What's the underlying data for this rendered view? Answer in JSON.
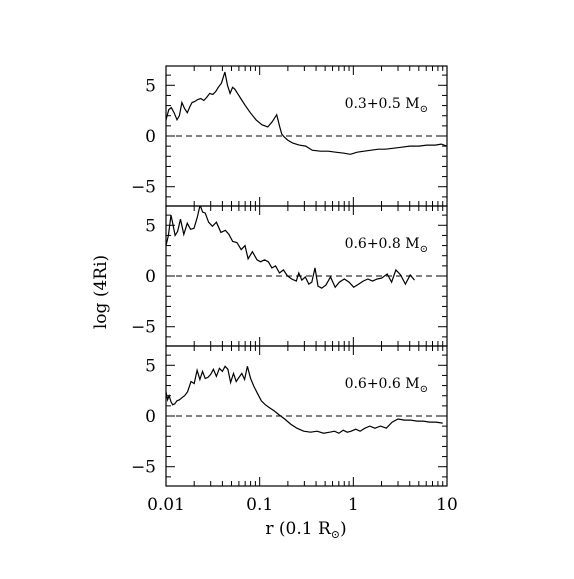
{
  "figure": {
    "xlabel": "r  (0.1 R",
    "xlabel_sub": "⊙",
    "xlabel_close": ")",
    "ylabel": "log  (4Ri)"
  },
  "chart_data": [
    {
      "type": "line",
      "panel": "top",
      "label_text": "0.3+0.5 M",
      "label_sub": "⊙",
      "xscale": "log",
      "xlim": [
        0.01,
        10
      ],
      "ylim": [
        -6.9,
        6.9
      ],
      "x_ticks": [
        "0.01",
        "0.1",
        "1",
        "10"
      ],
      "y_ticks": [
        "5",
        "0",
        "−5"
      ],
      "reference_line": {
        "y": 0,
        "style": "dashed"
      },
      "series": [
        {
          "x": [
            0.01,
            0.0107,
            0.0114,
            0.0122,
            0.0131,
            0.0139,
            0.0148,
            0.0158,
            0.0169,
            0.018,
            0.019,
            0.0203,
            0.0218,
            0.0235,
            0.0253,
            0.0272,
            0.0293,
            0.0317,
            0.034,
            0.0362,
            0.039,
            0.0425,
            0.0453,
            0.0483,
            0.0514,
            0.0544,
            0.059,
            0.0638,
            0.0703,
            0.0794,
            0.0913,
            0.106,
            0.122,
            0.136,
            0.152,
            0.163,
            0.172,
            0.183,
            0.199,
            0.226,
            0.264,
            0.31,
            0.364,
            0.443,
            0.54,
            0.648,
            0.795,
            0.93,
            1.1,
            1.3,
            1.55,
            1.85,
            2.2,
            2.7,
            3.3,
            4.0,
            5.0,
            6.1,
            7.5,
            8.7,
            10.0
          ],
          "y": [
            1.6,
            2.6,
            2.8,
            2.3,
            1.6,
            2.0,
            3.3,
            2.7,
            2.3,
            2.9,
            3.3,
            3.4,
            3.6,
            3.7,
            3.5,
            3.8,
            4.2,
            4.1,
            4.4,
            4.8,
            5.2,
            6.3,
            5.0,
            4.2,
            4.8,
            4.6,
            4.1,
            3.6,
            3.0,
            2.3,
            1.6,
            1.1,
            0.9,
            1.4,
            2.1,
            1.0,
            0.2,
            -0.1,
            -0.4,
            -0.7,
            -0.9,
            -1.0,
            -1.4,
            -1.5,
            -1.5,
            -1.6,
            -1.7,
            -1.8,
            -1.6,
            -1.5,
            -1.4,
            -1.3,
            -1.3,
            -1.2,
            -1.1,
            -1.0,
            -1.0,
            -0.9,
            -0.9,
            -0.8,
            -1.0
          ]
        }
      ]
    },
    {
      "type": "line",
      "panel": "middle",
      "label_text": "0.6+0.8 M",
      "label_sub": "⊙",
      "xscale": "log",
      "xlim": [
        0.01,
        10
      ],
      "ylim": [
        -6.9,
        6.9
      ],
      "x_ticks": [
        "0.01",
        "0.1",
        "1",
        "10"
      ],
      "y_ticks": [
        "5",
        "0",
        "−5"
      ],
      "reference_line": {
        "y": 0,
        "style": "dashed"
      },
      "series": [
        {
          "x": [
            0.01,
            0.0106,
            0.0113,
            0.0118,
            0.0125,
            0.0133,
            0.0143,
            0.0155,
            0.0169,
            0.0183,
            0.0199,
            0.0216,
            0.0231,
            0.0246,
            0.0262,
            0.0285,
            0.0313,
            0.0345,
            0.0386,
            0.0431,
            0.0469,
            0.0515,
            0.0572,
            0.0635,
            0.0698,
            0.0752,
            0.0836,
            0.0936,
            0.102,
            0.113,
            0.124,
            0.135,
            0.148,
            0.163,
            0.179,
            0.198,
            0.22,
            0.246,
            0.262,
            0.282,
            0.307,
            0.335,
            0.36,
            0.39,
            0.42,
            0.46,
            0.51,
            0.57,
            0.64,
            0.71,
            0.8,
            0.9,
            1.01,
            1.14,
            1.27,
            1.43,
            1.6,
            1.8,
            2.02,
            2.3,
            2.56,
            2.85,
            3.2,
            3.6,
            4.05,
            4.5
          ],
          "y": [
            3.0,
            4.0,
            6.0,
            5.2,
            4.0,
            4.4,
            5.6,
            4.1,
            5.2,
            4.6,
            4.7,
            5.8,
            7.0,
            6.3,
            6.2,
            5.3,
            4.9,
            5.3,
            4.3,
            4.5,
            4.1,
            3.4,
            3.3,
            2.6,
            3.0,
            1.7,
            2.4,
            1.6,
            1.4,
            1.6,
            1.4,
            0.8,
            1.0,
            0.3,
            0.6,
            0.0,
            -0.3,
            -0.5,
            0.3,
            -0.4,
            -0.1,
            -0.8,
            -0.6,
            0.8,
            -1.0,
            -1.2,
            -0.9,
            -0.1,
            -1.1,
            -0.6,
            -0.3,
            -0.6,
            -1.1,
            -0.8,
            -0.5,
            -0.3,
            -0.5,
            -0.3,
            -0.2,
            0.2,
            -0.6,
            0.6,
            0.1,
            -0.8,
            0.1,
            -0.4
          ]
        }
      ]
    },
    {
      "type": "line",
      "panel": "bottom",
      "label_text": "0.6+0.6 M",
      "label_sub": "⊙",
      "xscale": "log",
      "xlim": [
        0.01,
        10
      ],
      "ylim": [
        -6.9,
        6.9
      ],
      "x_ticks": [
        "0.01",
        "0.1",
        "1",
        "10"
      ],
      "y_ticks": [
        "5",
        "0",
        "−5"
      ],
      "reference_line": {
        "y": 0,
        "style": "dashed"
      },
      "series": [
        {
          "x": [
            0.01,
            0.0104,
            0.0108,
            0.0113,
            0.0118,
            0.0124,
            0.0131,
            0.0139,
            0.0148,
            0.0158,
            0.017,
            0.0185,
            0.02,
            0.0215,
            0.023,
            0.0245,
            0.0262,
            0.028,
            0.03,
            0.0321,
            0.0345,
            0.0372,
            0.04,
            0.0428,
            0.0458,
            0.049,
            0.0525,
            0.0562,
            0.0602,
            0.0644,
            0.069,
            0.074,
            0.08,
            0.087,
            0.095,
            0.104,
            0.115,
            0.128,
            0.143,
            0.162,
            0.185,
            0.214,
            0.25,
            0.295,
            0.35,
            0.41,
            0.48,
            0.56,
            0.63,
            0.7,
            0.78,
            0.86,
            0.95,
            1.06,
            1.18,
            1.33,
            1.5,
            1.7,
            1.95,
            2.25,
            2.6,
            3.0,
            3.5,
            4.1,
            4.8,
            5.6,
            6.5,
            7.6,
            9.0
          ],
          "y": [
            2.4,
            1.6,
            2.0,
            1.4,
            1.1,
            1.2,
            1.5,
            1.6,
            1.8,
            2.0,
            2.4,
            3.4,
            3.2,
            4.5,
            3.6,
            4.4,
            3.7,
            3.8,
            4.1,
            4.6,
            3.9,
            4.7,
            4.4,
            4.9,
            4.6,
            3.3,
            4.2,
            3.4,
            3.8,
            4.2,
            3.6,
            4.9,
            3.7,
            2.9,
            2.2,
            1.5,
            1.1,
            0.8,
            0.5,
            0.1,
            -0.3,
            -0.8,
            -1.2,
            -1.5,
            -1.6,
            -1.5,
            -1.7,
            -1.6,
            -1.5,
            -1.7,
            -1.4,
            -1.6,
            -1.5,
            -1.3,
            -1.5,
            -1.2,
            -1.0,
            -1.2,
            -1.0,
            -1.2,
            -0.6,
            -0.3,
            -0.4,
            -0.4,
            -0.5,
            -0.5,
            -0.6,
            -0.6,
            -0.7
          ]
        }
      ]
    }
  ]
}
